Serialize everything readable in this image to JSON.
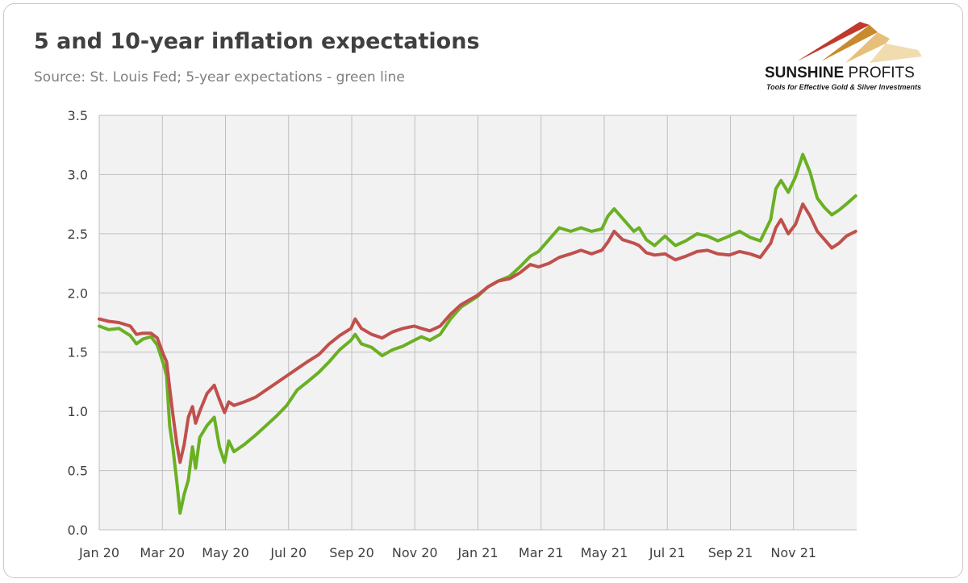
{
  "title": "5 and 10-year inflation expectations",
  "subtitle": "Source: St. Louis Fed; 5-year expectations - green line",
  "logo": {
    "name_bold": "SUNSHINE",
    "name_thin": " PROFITS",
    "tagline": "Tools for Effective Gold & Silver Investments"
  },
  "chart_data": {
    "type": "line",
    "title": "5 and 10-year inflation expectations",
    "subtitle": "Source: St. Louis Fed; 5-year expectations - green line",
    "x_axis": {
      "start": "2020-01",
      "end": "2021-12",
      "tick_labels": [
        "Jan 20",
        "Mar 20",
        "May 20",
        "Jul 20",
        "Sep 20",
        "Nov 20",
        "Jan 21",
        "Mar 21",
        "May 21",
        "Jul 21",
        "Sep 21",
        "Nov 21"
      ]
    },
    "ylim": [
      0,
      3.5
    ],
    "y_ticks": [
      "0.0",
      "0.5",
      "1.0",
      "1.5",
      "2.0",
      "2.5",
      "3.0",
      "3.5"
    ],
    "grid": true,
    "colors": {
      "green": "#6ab023",
      "red": "#c0504d",
      "plot_bg": "#f2f2f2",
      "grid": "#bfbfbf"
    },
    "series": [
      {
        "key": "5-year",
        "color": "#6ab023",
        "points": [
          [
            "2020-01-01",
            1.72
          ],
          [
            "2020-01-10",
            1.69
          ],
          [
            "2020-01-20",
            1.7
          ],
          [
            "2020-01-31",
            1.64
          ],
          [
            "2020-02-06",
            1.57
          ],
          [
            "2020-02-12",
            1.61
          ],
          [
            "2020-02-20",
            1.63
          ],
          [
            "2020-02-26",
            1.56
          ],
          [
            "2020-03-03",
            1.4
          ],
          [
            "2020-03-06",
            1.3
          ],
          [
            "2020-03-09",
            0.88
          ],
          [
            "2020-03-12",
            0.7
          ],
          [
            "2020-03-16",
            0.4
          ],
          [
            "2020-03-19",
            0.14
          ],
          [
            "2020-03-23",
            0.3
          ],
          [
            "2020-03-27",
            0.42
          ],
          [
            "2020-03-31",
            0.7
          ],
          [
            "2020-04-03",
            0.52
          ],
          [
            "2020-04-07",
            0.78
          ],
          [
            "2020-04-14",
            0.88
          ],
          [
            "2020-04-21",
            0.95
          ],
          [
            "2020-04-26",
            0.7
          ],
          [
            "2020-05-01",
            0.57
          ],
          [
            "2020-05-05",
            0.75
          ],
          [
            "2020-05-10",
            0.66
          ],
          [
            "2020-05-20",
            0.72
          ],
          [
            "2020-05-31",
            0.8
          ],
          [
            "2020-06-10",
            0.88
          ],
          [
            "2020-06-20",
            0.96
          ],
          [
            "2020-06-30",
            1.05
          ],
          [
            "2020-07-10",
            1.18
          ],
          [
            "2020-07-20",
            1.25
          ],
          [
            "2020-07-31",
            1.33
          ],
          [
            "2020-08-10",
            1.42
          ],
          [
            "2020-08-20",
            1.52
          ],
          [
            "2020-08-31",
            1.6
          ],
          [
            "2020-09-04",
            1.65
          ],
          [
            "2020-09-10",
            1.57
          ],
          [
            "2020-09-20",
            1.54
          ],
          [
            "2020-09-30",
            1.47
          ],
          [
            "2020-10-10",
            1.52
          ],
          [
            "2020-10-20",
            1.55
          ],
          [
            "2020-10-31",
            1.6
          ],
          [
            "2020-11-07",
            1.63
          ],
          [
            "2020-11-15",
            1.6
          ],
          [
            "2020-11-25",
            1.65
          ],
          [
            "2020-12-05",
            1.78
          ],
          [
            "2020-12-15",
            1.88
          ],
          [
            "2020-12-31",
            1.97
          ],
          [
            "2021-01-10",
            2.05
          ],
          [
            "2021-01-20",
            2.1
          ],
          [
            "2021-01-31",
            2.14
          ],
          [
            "2021-02-10",
            2.22
          ],
          [
            "2021-02-20",
            2.31
          ],
          [
            "2021-02-28",
            2.35
          ],
          [
            "2021-03-10",
            2.45
          ],
          [
            "2021-03-20",
            2.55
          ],
          [
            "2021-03-31",
            2.52
          ],
          [
            "2021-04-10",
            2.55
          ],
          [
            "2021-04-20",
            2.52
          ],
          [
            "2021-04-30",
            2.54
          ],
          [
            "2021-05-06",
            2.65
          ],
          [
            "2021-05-12",
            2.71
          ],
          [
            "2021-05-20",
            2.63
          ],
          [
            "2021-05-31",
            2.52
          ],
          [
            "2021-06-05",
            2.55
          ],
          [
            "2021-06-12",
            2.45
          ],
          [
            "2021-06-20",
            2.4
          ],
          [
            "2021-06-30",
            2.48
          ],
          [
            "2021-07-10",
            2.4
          ],
          [
            "2021-07-20",
            2.44
          ],
          [
            "2021-07-31",
            2.5
          ],
          [
            "2021-08-10",
            2.48
          ],
          [
            "2021-08-20",
            2.44
          ],
          [
            "2021-08-31",
            2.48
          ],
          [
            "2021-09-10",
            2.52
          ],
          [
            "2021-09-20",
            2.47
          ],
          [
            "2021-09-30",
            2.44
          ],
          [
            "2021-10-10",
            2.62
          ],
          [
            "2021-10-15",
            2.88
          ],
          [
            "2021-10-20",
            2.95
          ],
          [
            "2021-10-27",
            2.85
          ],
          [
            "2021-11-03",
            2.98
          ],
          [
            "2021-11-10",
            3.17
          ],
          [
            "2021-11-17",
            3.02
          ],
          [
            "2021-11-24",
            2.8
          ],
          [
            "2021-12-01",
            2.72
          ],
          [
            "2021-12-08",
            2.66
          ],
          [
            "2021-12-15",
            2.7
          ],
          [
            "2021-12-22",
            2.75
          ],
          [
            "2021-12-31",
            2.82
          ]
        ]
      },
      {
        "key": "10-year",
        "color": "#c0504d",
        "points": [
          [
            "2020-01-01",
            1.78
          ],
          [
            "2020-01-10",
            1.76
          ],
          [
            "2020-01-20",
            1.75
          ],
          [
            "2020-01-31",
            1.72
          ],
          [
            "2020-02-06",
            1.65
          ],
          [
            "2020-02-12",
            1.66
          ],
          [
            "2020-02-20",
            1.66
          ],
          [
            "2020-02-26",
            1.62
          ],
          [
            "2020-03-03",
            1.48
          ],
          [
            "2020-03-06",
            1.42
          ],
          [
            "2020-03-09",
            1.2
          ],
          [
            "2020-03-12",
            0.98
          ],
          [
            "2020-03-16",
            0.72
          ],
          [
            "2020-03-19",
            0.57
          ],
          [
            "2020-03-23",
            0.72
          ],
          [
            "2020-03-27",
            0.95
          ],
          [
            "2020-03-31",
            1.04
          ],
          [
            "2020-04-03",
            0.9
          ],
          [
            "2020-04-07",
            1.0
          ],
          [
            "2020-04-14",
            1.15
          ],
          [
            "2020-04-21",
            1.22
          ],
          [
            "2020-04-26",
            1.1
          ],
          [
            "2020-05-01",
            0.99
          ],
          [
            "2020-05-05",
            1.08
          ],
          [
            "2020-05-10",
            1.05
          ],
          [
            "2020-05-20",
            1.08
          ],
          [
            "2020-05-31",
            1.12
          ],
          [
            "2020-06-10",
            1.18
          ],
          [
            "2020-06-20",
            1.24
          ],
          [
            "2020-06-30",
            1.3
          ],
          [
            "2020-07-10",
            1.36
          ],
          [
            "2020-07-20",
            1.42
          ],
          [
            "2020-07-31",
            1.48
          ],
          [
            "2020-08-10",
            1.57
          ],
          [
            "2020-08-20",
            1.64
          ],
          [
            "2020-08-31",
            1.7
          ],
          [
            "2020-09-04",
            1.78
          ],
          [
            "2020-09-10",
            1.7
          ],
          [
            "2020-09-20",
            1.65
          ],
          [
            "2020-09-30",
            1.62
          ],
          [
            "2020-10-10",
            1.67
          ],
          [
            "2020-10-20",
            1.7
          ],
          [
            "2020-10-31",
            1.72
          ],
          [
            "2020-11-07",
            1.7
          ],
          [
            "2020-11-15",
            1.68
          ],
          [
            "2020-11-25",
            1.72
          ],
          [
            "2020-12-05",
            1.82
          ],
          [
            "2020-12-15",
            1.9
          ],
          [
            "2020-12-31",
            1.98
          ],
          [
            "2021-01-10",
            2.05
          ],
          [
            "2021-01-20",
            2.1
          ],
          [
            "2021-01-31",
            2.12
          ],
          [
            "2021-02-10",
            2.17
          ],
          [
            "2021-02-20",
            2.24
          ],
          [
            "2021-02-28",
            2.22
          ],
          [
            "2021-03-10",
            2.25
          ],
          [
            "2021-03-20",
            2.3
          ],
          [
            "2021-03-31",
            2.33
          ],
          [
            "2021-04-10",
            2.36
          ],
          [
            "2021-04-20",
            2.33
          ],
          [
            "2021-04-30",
            2.36
          ],
          [
            "2021-05-06",
            2.43
          ],
          [
            "2021-05-12",
            2.52
          ],
          [
            "2021-05-20",
            2.45
          ],
          [
            "2021-05-31",
            2.42
          ],
          [
            "2021-06-05",
            2.4
          ],
          [
            "2021-06-12",
            2.34
          ],
          [
            "2021-06-20",
            2.32
          ],
          [
            "2021-06-30",
            2.33
          ],
          [
            "2021-07-10",
            2.28
          ],
          [
            "2021-07-20",
            2.31
          ],
          [
            "2021-07-31",
            2.35
          ],
          [
            "2021-08-10",
            2.36
          ],
          [
            "2021-08-20",
            2.33
          ],
          [
            "2021-08-31",
            2.32
          ],
          [
            "2021-09-10",
            2.35
          ],
          [
            "2021-09-20",
            2.33
          ],
          [
            "2021-09-30",
            2.3
          ],
          [
            "2021-10-10",
            2.42
          ],
          [
            "2021-10-15",
            2.55
          ],
          [
            "2021-10-20",
            2.62
          ],
          [
            "2021-10-27",
            2.5
          ],
          [
            "2021-11-03",
            2.58
          ],
          [
            "2021-11-10",
            2.75
          ],
          [
            "2021-11-17",
            2.65
          ],
          [
            "2021-11-24",
            2.52
          ],
          [
            "2021-12-01",
            2.45
          ],
          [
            "2021-12-08",
            2.38
          ],
          [
            "2021-12-15",
            2.42
          ],
          [
            "2021-12-22",
            2.48
          ],
          [
            "2021-12-31",
            2.52
          ]
        ]
      }
    ]
  }
}
